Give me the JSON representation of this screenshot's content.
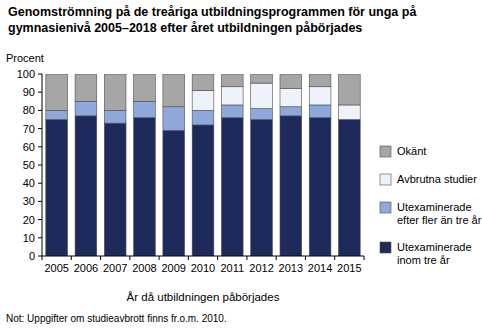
{
  "chart_data": {
    "type": "bar",
    "stacked": true,
    "title": "Genomströmning på de treåriga utbildningsprogrammen för unga på gymnasienivå 2005–2018 efter året utbildningen påbörjades",
    "y_label": "Procent",
    "x_label": "År då utbildningen påbörjades",
    "note": "Not: Uppgifter om studieavbrott finns fr.o.m. 2010.",
    "categories": [
      "2005",
      "2006",
      "2007",
      "2008",
      "2009",
      "2010",
      "2011",
      "2012",
      "2013",
      "2014",
      "2015"
    ],
    "series": [
      {
        "name": "Utexaminerade inom tre år",
        "color": "#1f2a5c",
        "values": [
          75,
          77,
          73,
          76,
          69,
          72,
          76,
          75,
          77,
          76,
          75
        ]
      },
      {
        "name": "Utexaminerade efter fler än tre år",
        "color": "#8ea8db",
        "values": [
          5,
          8,
          7,
          9,
          13,
          8,
          7,
          6,
          5,
          7,
          null
        ]
      },
      {
        "name": "Avbrutna studier",
        "color": "#eef2fa",
        "values": [
          null,
          null,
          null,
          null,
          null,
          11,
          10,
          14,
          10,
          10,
          8
        ]
      },
      {
        "name": "Okänt",
        "color": "#a6a6a6",
        "values": [
          20,
          15,
          20,
          15,
          18,
          9,
          7,
          5,
          8,
          7,
          17
        ]
      }
    ],
    "ylim": [
      0,
      100
    ],
    "yticks": [
      0,
      10,
      20,
      30,
      40,
      50,
      60,
      70,
      80,
      90,
      100
    ],
    "grid": false,
    "legend": "right"
  }
}
